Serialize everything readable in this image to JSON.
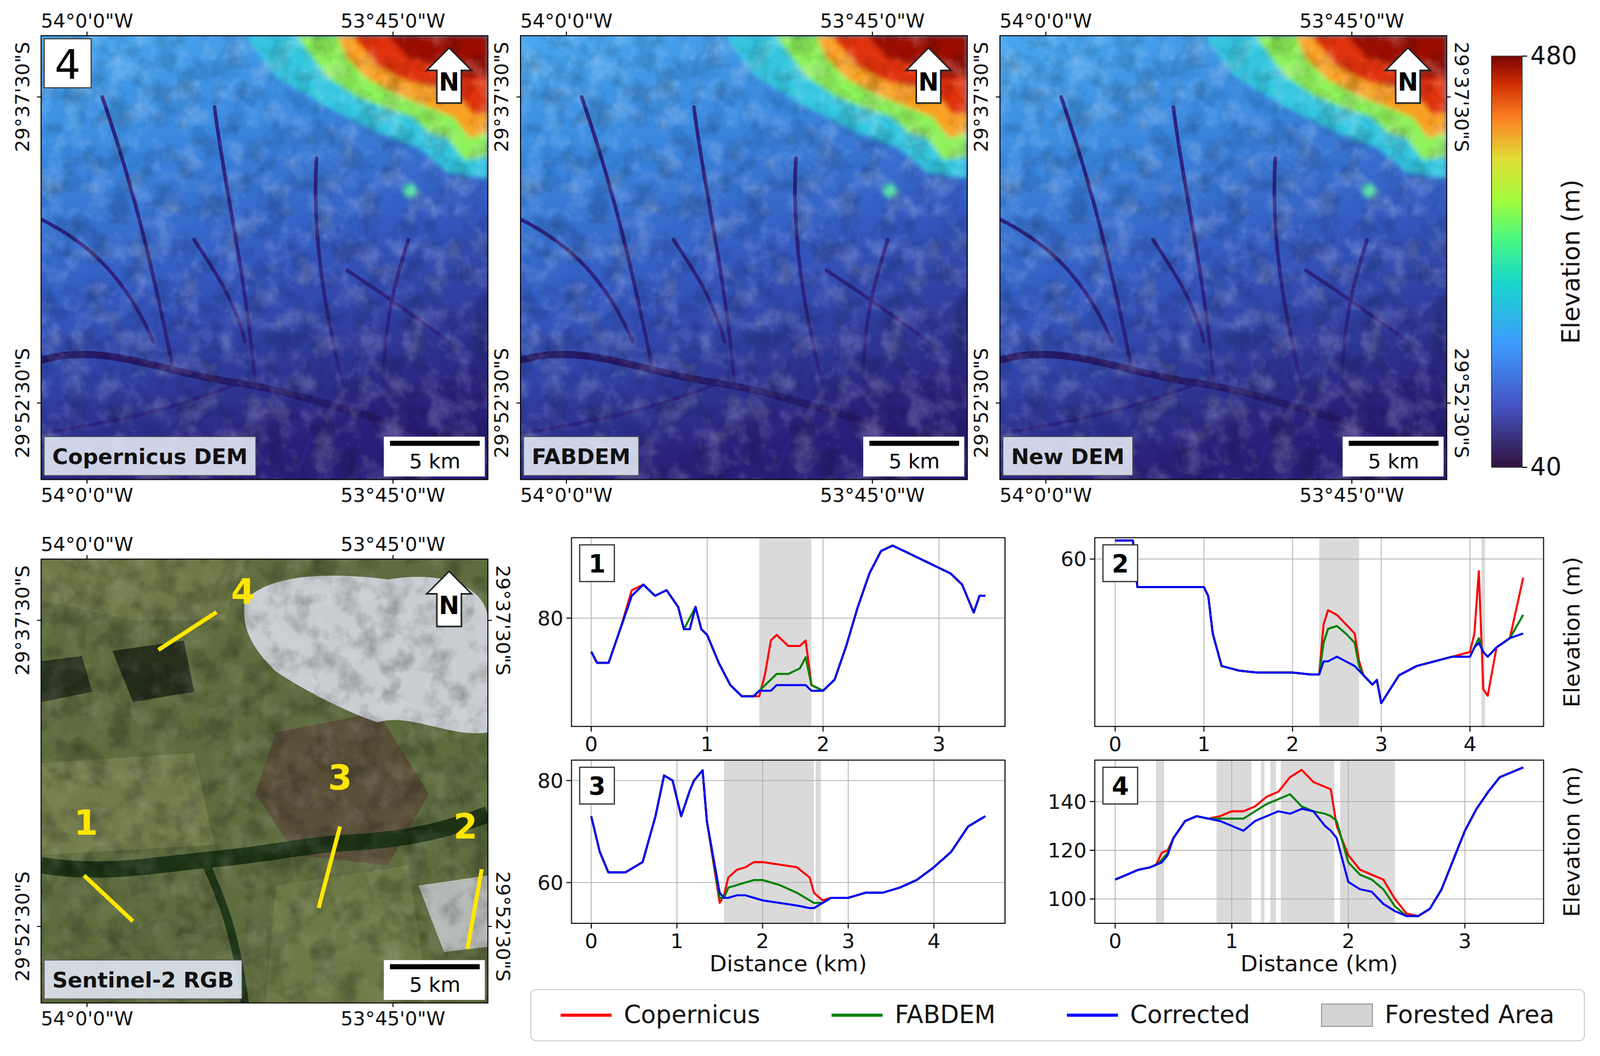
{
  "figure_label": "4",
  "maps": {
    "lon_range": [
      -54.0375,
      -53.6725
    ],
    "lat_range": [
      -29.575,
      -29.9375
    ],
    "lon_ticks": [
      {
        "value": -54.0,
        "label": "54°0'0\"W"
      },
      {
        "value": -53.75,
        "label": "53°45'0\"W"
      }
    ],
    "lat_ticks": [
      {
        "value": -29.625,
        "label": "29°37'30\"S"
      },
      {
        "value": -29.875,
        "label": "29°52'30\"S"
      }
    ],
    "scale_bar": "5 km",
    "north_label": "N",
    "dem_panels": [
      "Copernicus DEM",
      "FABDEM",
      "New DEM"
    ],
    "colorbar": {
      "label": "Elevation (m)",
      "range": [
        40,
        480
      ],
      "ticks": [
        40,
        480
      ]
    },
    "rgb_panel": {
      "title": "Sentinel-2 RGB",
      "transects": [
        {
          "label": "1",
          "lon": [
            -54.0025,
            -53.9625
          ],
          "lat": [
            -29.8333,
            -29.8708
          ]
        },
        {
          "label": "2",
          "lon": [
            -53.6775,
            -53.6892
          ],
          "lat": [
            -29.8283,
            -29.8933
          ]
        },
        {
          "label": "3",
          "lon": [
            -53.7933,
            -53.8108
          ],
          "lat": [
            -29.7933,
            -29.86
          ]
        },
        {
          "label": "4",
          "lon": [
            -53.8942,
            -53.9417
          ],
          "lat": [
            -29.6183,
            -29.6492
          ]
        }
      ]
    }
  },
  "forest_legend": "Forested Area",
  "chart_data": [
    {
      "type": "line",
      "panel_label": "1",
      "grid": true,
      "x": [
        0,
        0.05,
        0.15,
        0.25,
        0.35,
        0.45,
        0.55,
        0.65,
        0.75,
        0.8,
        0.85,
        0.9,
        0.95,
        1.0,
        1.1,
        1.2,
        1.3,
        1.4,
        1.45,
        1.5,
        1.55,
        1.6,
        1.7,
        1.8,
        1.85,
        1.9,
        2.0,
        2.1,
        2.2,
        2.3,
        2.4,
        2.5,
        2.6,
        2.7,
        2.8,
        2.9,
        3.0,
        3.1,
        3.2,
        3.3,
        3.35,
        3.4
      ],
      "series": [
        {
          "name": "Copernicus",
          "color": "#ff0000",
          "values": [
            74,
            72,
            72,
            78,
            85,
            86,
            84,
            85,
            82,
            78,
            78,
            82,
            78,
            77,
            72,
            68,
            66,
            66,
            66,
            70,
            76,
            77,
            75,
            75,
            76,
            68,
            67,
            69,
            75,
            82,
            88,
            92,
            93,
            92,
            91,
            90,
            89,
            88,
            86,
            81,
            84,
            84
          ]
        },
        {
          "name": "FABDEM",
          "color": "#008000",
          "values": [
            74,
            72,
            72,
            78,
            84,
            86,
            84,
            85,
            82,
            78,
            80,
            82,
            78,
            77,
            72,
            68,
            66,
            66,
            67,
            68,
            69,
            70,
            70,
            71,
            73,
            68,
            67,
            69,
            75,
            82,
            88,
            92,
            93,
            92,
            91,
            90,
            89,
            88,
            86,
            81,
            84,
            84
          ]
        },
        {
          "name": "Corrected",
          "color": "#0000ff",
          "values": [
            74,
            72,
            72,
            78,
            84,
            86,
            84,
            85,
            82,
            78,
            78,
            82,
            78,
            77,
            72,
            68,
            66,
            66,
            67,
            67,
            67,
            68,
            68,
            68,
            68,
            67,
            67,
            69,
            75,
            82,
            88,
            92,
            93,
            92,
            91,
            90,
            89,
            88,
            86,
            81,
            84,
            84
          ]
        }
      ],
      "forested_areas": [
        [
          1.45,
          1.9
        ]
      ],
      "xlim": [
        -0.17,
        3.57
      ],
      "xticks": [
        0,
        1,
        2,
        3
      ],
      "ylim": [
        60.6,
        94.4
      ],
      "yticks": [
        80
      ]
    },
    {
      "type": "line",
      "panel_label": "2",
      "grid": true,
      "ylabel": "Elevation (m)",
      "x": [
        0,
        0.2,
        0.25,
        0.5,
        0.9,
        1.0,
        1.05,
        1.1,
        1.2,
        1.4,
        1.6,
        1.8,
        2.0,
        2.2,
        2.3,
        2.35,
        2.4,
        2.5,
        2.6,
        2.7,
        2.75,
        2.8,
        2.9,
        2.95,
        3.0,
        3.1,
        3.2,
        3.4,
        3.6,
        3.8,
        4.0,
        4.05,
        4.1,
        4.15,
        4.2,
        4.3,
        4.45,
        4.6
      ],
      "series": [
        {
          "name": "Copernicus",
          "color": "#ff0000",
          "values": [
            62,
            62,
            57,
            57,
            57,
            57,
            56,
            52,
            48.5,
            48,
            47.8,
            47.8,
            47.8,
            47.6,
            47.6,
            53,
            54.5,
            54,
            53,
            52,
            49,
            47.5,
            46.5,
            47,
            44.5,
            46,
            47.5,
            48.5,
            49,
            49.5,
            50,
            52,
            58.7,
            46,
            45.3,
            50.5,
            51.5,
            58
          ]
        },
        {
          "name": "FABDEM",
          "color": "#008000",
          "values": [
            62,
            62,
            57,
            57,
            57,
            57,
            56,
            52,
            48.5,
            48,
            47.8,
            47.8,
            47.8,
            47.6,
            47.6,
            51,
            52.5,
            52.8,
            52,
            51,
            48.5,
            47.5,
            46.5,
            47,
            44.5,
            46,
            47.5,
            48.5,
            49,
            49.5,
            49.5,
            50.5,
            51.5,
            50,
            49.5,
            50.5,
            51.5,
            54
          ]
        },
        {
          "name": "Corrected",
          "color": "#0000ff",
          "values": [
            62,
            62,
            57,
            57,
            57,
            57,
            56,
            52,
            48.5,
            48,
            47.8,
            47.8,
            47.8,
            47.6,
            47.6,
            49,
            49,
            49.5,
            49,
            48.5,
            48,
            47.5,
            46.5,
            47,
            44.5,
            46,
            47.5,
            48.5,
            49,
            49.5,
            49.5,
            50.5,
            51,
            50,
            49.5,
            50.5,
            51.5,
            52
          ]
        }
      ],
      "forested_areas": [
        [
          2.3,
          2.75
        ],
        [
          4.13,
          4.17
        ]
      ],
      "xlim": [
        -0.23,
        4.83
      ],
      "xticks": [
        0,
        1,
        2,
        3,
        4
      ],
      "ylim": [
        42,
        62.3
      ],
      "yticks": [
        60
      ]
    },
    {
      "type": "line",
      "panel_label": "3",
      "grid": true,
      "xlabel": "Distance (km)",
      "x": [
        0,
        0.1,
        0.2,
        0.4,
        0.6,
        0.75,
        0.85,
        0.95,
        1.05,
        1.15,
        1.2,
        1.3,
        1.35,
        1.5,
        1.55,
        1.6,
        1.7,
        1.8,
        1.9,
        2.0,
        2.2,
        2.4,
        2.55,
        2.6,
        2.7,
        2.8,
        3.0,
        3.2,
        3.4,
        3.6,
        3.8,
        4.0,
        4.2,
        4.4,
        4.6
      ],
      "series": [
        {
          "name": "Copernicus",
          "color": "#ff0000",
          "values": [
            73,
            66,
            62,
            62,
            64,
            73,
            81,
            80,
            73,
            78,
            80,
            82,
            72,
            56,
            57.5,
            61,
            62.5,
            63,
            64,
            64,
            63.5,
            63,
            61,
            58,
            56.5,
            57,
            57,
            58,
            58,
            59,
            60.5,
            63,
            66,
            71,
            73
          ]
        },
        {
          "name": "FABDEM",
          "color": "#008000",
          "values": [
            73,
            66,
            62,
            62,
            64,
            73,
            81,
            80,
            73,
            78,
            80,
            82,
            72,
            57,
            57,
            59,
            59.5,
            60,
            60.5,
            60.5,
            59.5,
            58,
            56.5,
            56,
            56,
            57,
            57,
            58,
            58,
            59,
            60.5,
            63,
            66,
            71,
            73
          ]
        },
        {
          "name": "Corrected",
          "color": "#0000ff",
          "values": [
            73,
            66,
            62,
            62,
            64,
            73,
            81,
            80,
            73,
            78,
            80,
            82,
            72,
            58,
            57,
            57,
            57.5,
            57.5,
            57,
            56.5,
            56,
            55.5,
            55,
            55,
            56,
            57,
            57,
            58,
            58,
            59,
            60.5,
            63,
            66,
            71,
            73
          ]
        }
      ],
      "forested_areas": [
        [
          1.55,
          2.6
        ],
        [
          2.62,
          2.68
        ]
      ],
      "xlim": [
        -0.23,
        4.83
      ],
      "xticks": [
        0,
        1,
        2,
        3,
        4
      ],
      "ylim": [
        52,
        84
      ],
      "yticks": [
        60,
        80
      ]
    },
    {
      "type": "line",
      "panel_label": "4",
      "grid": true,
      "xlabel": "Distance (km)",
      "ylabel": "Elevation (m)",
      "x": [
        0,
        0.1,
        0.2,
        0.3,
        0.35,
        0.4,
        0.45,
        0.5,
        0.6,
        0.7,
        0.8,
        0.9,
        1.0,
        1.1,
        1.2,
        1.3,
        1.4,
        1.5,
        1.6,
        1.7,
        1.8,
        1.85,
        1.9,
        2.0,
        2.1,
        2.2,
        2.3,
        2.4,
        2.5,
        2.6,
        2.7,
        2.8,
        2.9,
        3.0,
        3.1,
        3.2,
        3.3,
        3.4,
        3.5
      ],
      "series": [
        {
          "name": "Copernicus",
          "color": "#ff0000",
          "values": [
            108,
            110,
            112,
            113,
            114,
            119,
            120,
            125,
            132,
            134,
            133,
            134,
            136,
            136,
            138,
            142,
            144,
            150,
            153,
            148,
            146,
            145,
            130,
            118,
            112,
            110,
            108,
            100,
            94,
            93,
            96,
            104,
            116,
            128,
            137,
            144,
            150,
            152,
            154
          ]
        },
        {
          "name": "FABDEM",
          "color": "#008000",
          "values": [
            108,
            110,
            112,
            113,
            114,
            116,
            119,
            125,
            132,
            134,
            133,
            133,
            133,
            133,
            136,
            139,
            141,
            143,
            138,
            136,
            135,
            134,
            132,
            115,
            110,
            108,
            104,
            97,
            93,
            93,
            96,
            104,
            116,
            128,
            137,
            144,
            150,
            152,
            154
          ]
        },
        {
          "name": "Corrected",
          "color": "#0000ff",
          "values": [
            108,
            110,
            112,
            113,
            114,
            115,
            118,
            125,
            132,
            134,
            133,
            132,
            130,
            128,
            132,
            134,
            136,
            135,
            137,
            136,
            130,
            128,
            125,
            107,
            104,
            103,
            98,
            95,
            93,
            93,
            96,
            104,
            116,
            128,
            137,
            144,
            150,
            152,
            154
          ]
        }
      ],
      "forested_areas": [
        [
          0.35,
          0.42
        ],
        [
          0.87,
          1.17
        ],
        [
          1.25,
          1.28
        ],
        [
          1.33,
          1.38
        ],
        [
          1.42,
          1.88
        ],
        [
          1.93,
          2.4
        ]
      ],
      "xlim": [
        -0.175,
        3.675
      ],
      "xticks": [
        0,
        1,
        2,
        3
      ],
      "ylim": [
        90,
        157
      ],
      "yticks": [
        100,
        120,
        140
      ]
    }
  ]
}
